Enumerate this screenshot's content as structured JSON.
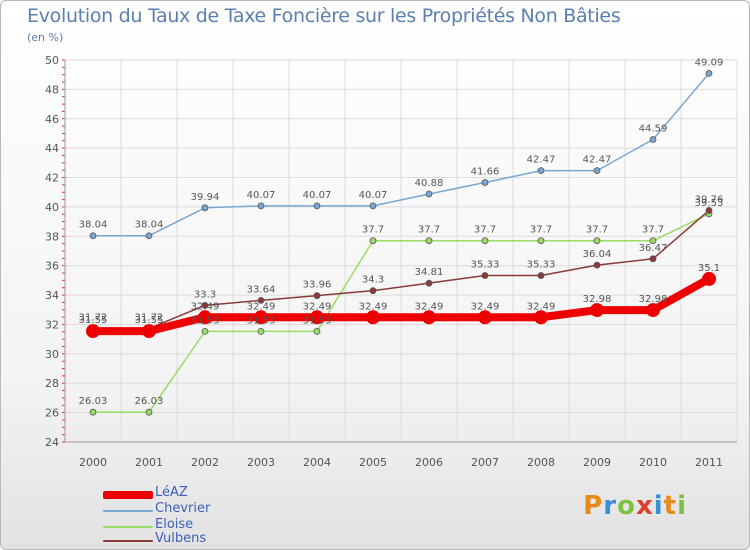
{
  "header": {
    "title": "Evolution du Taux de Taxe Foncière sur les Propriétés Non Bâties",
    "subtitle": "(en %)"
  },
  "logo": {
    "letters": [
      "P",
      "r",
      "o",
      "x",
      "i",
      "t",
      "i"
    ],
    "colors": [
      "#e88a1a",
      "#3a8fd8",
      "#7cc242",
      "#e23d2b",
      "#3a8fd8",
      "#e88a1a",
      "#7cc242"
    ]
  },
  "chart_data": {
    "type": "line",
    "x": [
      "2000",
      "2001",
      "2002",
      "2003",
      "2004",
      "2005",
      "2006",
      "2007",
      "2008",
      "2009",
      "2010",
      "2011"
    ],
    "ylim": [
      24,
      50
    ],
    "yticks": [
      24,
      26,
      28,
      30,
      32,
      34,
      36,
      38,
      40,
      42,
      44,
      46,
      48,
      50
    ],
    "grid": true,
    "legend_position": "bottom-left",
    "series": [
      {
        "name": "LéAZ",
        "color": "#ee0000",
        "width": 8,
        "marker": 7,
        "values": [
          31.55,
          31.55,
          32.49,
          32.49,
          32.49,
          32.49,
          32.49,
          32.49,
          32.49,
          32.98,
          32.98,
          35.1
        ],
        "labels": [
          "31.55",
          "31.55",
          "32.49",
          "32.49",
          "32.49",
          "32.49",
          "32.49",
          "32.49",
          "32.49",
          "32.98",
          "32.98",
          "35.1"
        ]
      },
      {
        "name": "Chevrier",
        "color": "#7aa7d2",
        "width": 1.5,
        "marker": 3,
        "values": [
          38.04,
          38.04,
          39.94,
          40.07,
          40.07,
          40.07,
          40.88,
          41.66,
          42.47,
          42.47,
          44.59,
          49.09
        ],
        "labels": [
          "38.04",
          "38.04",
          "39.94",
          "40.07",
          "40.07",
          "40.07",
          "40.88",
          "41.66",
          "42.47",
          "42.47",
          "44.59",
          "49.09"
        ]
      },
      {
        "name": "Eloise",
        "color": "#99dd66",
        "width": 1.5,
        "marker": 3,
        "values": [
          26.03,
          26.03,
          31.53,
          31.53,
          31.53,
          37.7,
          37.7,
          37.7,
          37.7,
          37.7,
          37.7,
          39.53
        ],
        "labels": [
          "26.03",
          "26.03",
          "31.53",
          "31.53",
          "31.53",
          "37.7",
          "37.7",
          "37.7",
          "37.7",
          "37.7",
          "37.7",
          "39.53"
        ]
      },
      {
        "name": "Vulbens",
        "color": "#8b3a3a",
        "width": 1.5,
        "marker": 3,
        "values": [
          31.72,
          31.72,
          33.3,
          33.64,
          33.96,
          34.3,
          34.81,
          35.33,
          35.33,
          36.04,
          36.47,
          39.76
        ],
        "labels": [
          "31.72",
          "31.72",
          "33.3",
          "33.64",
          "33.96",
          "34.3",
          "34.81",
          "35.33",
          "35.33",
          "36.04",
          "36.47",
          "39.76"
        ]
      }
    ]
  }
}
